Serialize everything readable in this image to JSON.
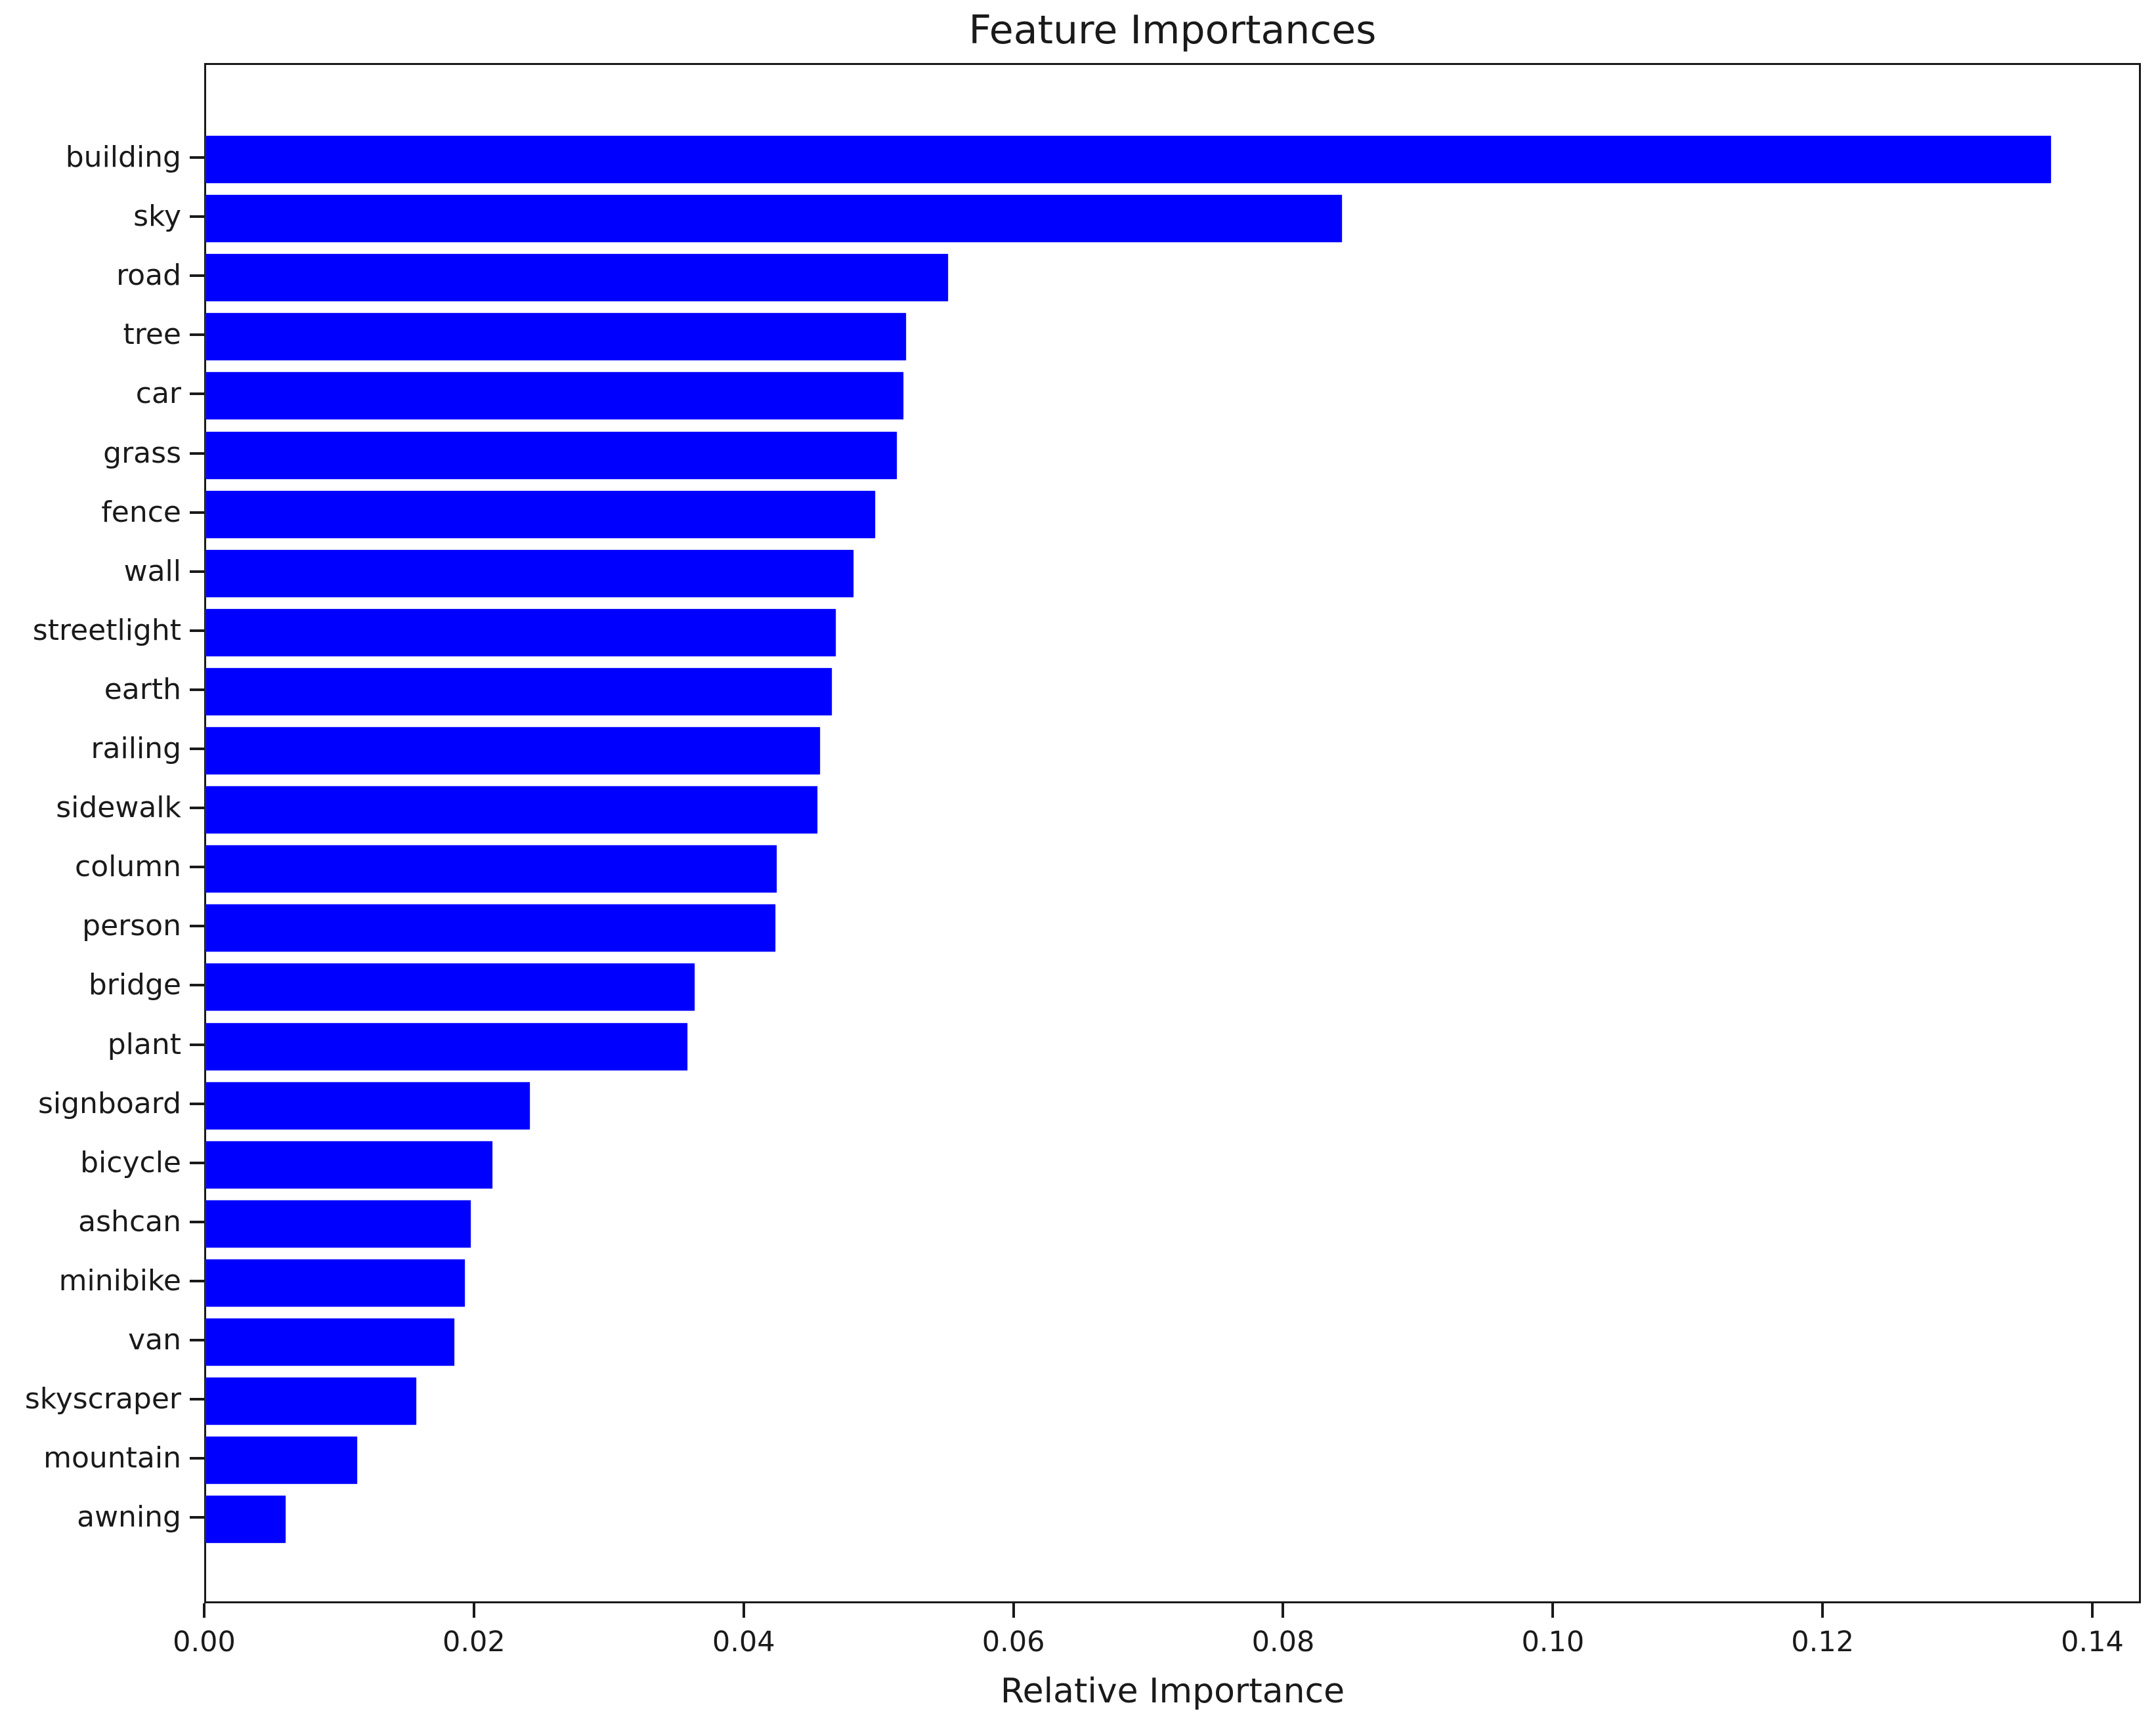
{
  "chart_data": {
    "type": "bar",
    "orientation": "horizontal",
    "title": "Feature Importances",
    "xlabel": "Relative Importance",
    "ylabel": "",
    "categories": [
      "building",
      "sky",
      "road",
      "tree",
      "car",
      "grass",
      "fence",
      "wall",
      "streetlight",
      "earth",
      "railing",
      "sidewalk",
      "column",
      "person",
      "bridge",
      "plant",
      "signboard",
      "bicycle",
      "ashcan",
      "minibike",
      "van",
      "skyscraper",
      "mountain",
      "awning"
    ],
    "values": [
      0.1368,
      0.0842,
      0.055,
      0.0519,
      0.0517,
      0.0512,
      0.0496,
      0.048,
      0.0467,
      0.0464,
      0.0455,
      0.0453,
      0.0423,
      0.0422,
      0.0362,
      0.0357,
      0.024,
      0.0212,
      0.0196,
      0.0192,
      0.0184,
      0.0156,
      0.0112,
      0.0059
    ],
    "xticks": [
      0.0,
      0.02,
      0.04,
      0.06,
      0.08,
      0.1,
      0.12,
      0.14
    ],
    "xtick_labels": [
      "0.00",
      "0.02",
      "0.04",
      "0.06",
      "0.08",
      "0.10",
      "0.12",
      "0.14"
    ],
    "xlim": [
      0,
      0.1436
    ],
    "grid": false,
    "legend": null,
    "bar_color": "#0000ff",
    "axis_color": "#1a1a1a",
    "background_color": "#ffffff"
  }
}
